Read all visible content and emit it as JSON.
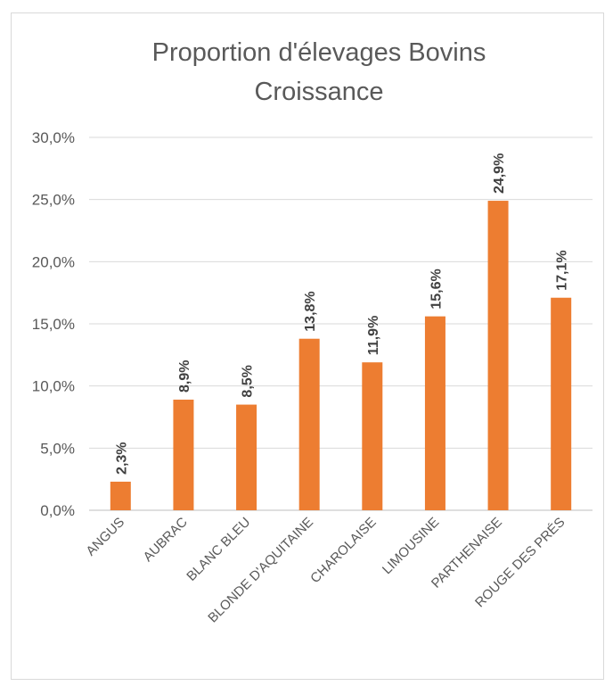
{
  "chart_data": {
    "type": "bar",
    "title": "Proportion d'élevages Bovins Croissance",
    "title_lines": [
      "Proportion d'élevages Bovins",
      "Croissance"
    ],
    "categories": [
      "ANGUS",
      "AUBRAC",
      "BLANC BLEU",
      "BLONDE D'AQUITAINE",
      "CHAROLAISE",
      "LIMOUSINE",
      "PARTHENAISE",
      "ROUGE DES PRÉS"
    ],
    "values": [
      2.3,
      8.9,
      8.5,
      13.8,
      11.9,
      15.6,
      24.9,
      17.1
    ],
    "data_labels": [
      "2,3%",
      "8,9%",
      "8,5%",
      "13,8%",
      "11,9%",
      "15,6%",
      "24,9%",
      "17,1%"
    ],
    "y_ticks": [
      0,
      5,
      10,
      15,
      20,
      25,
      30
    ],
    "y_tick_labels": [
      "0,0%",
      "5,0%",
      "10,0%",
      "15,0%",
      "20,0%",
      "25,0%",
      "30,0%"
    ],
    "ylim": [
      0,
      30
    ],
    "xlabel": "",
    "ylabel": "",
    "grid": true,
    "legend": "none",
    "bar_color": "#ED7D31"
  }
}
